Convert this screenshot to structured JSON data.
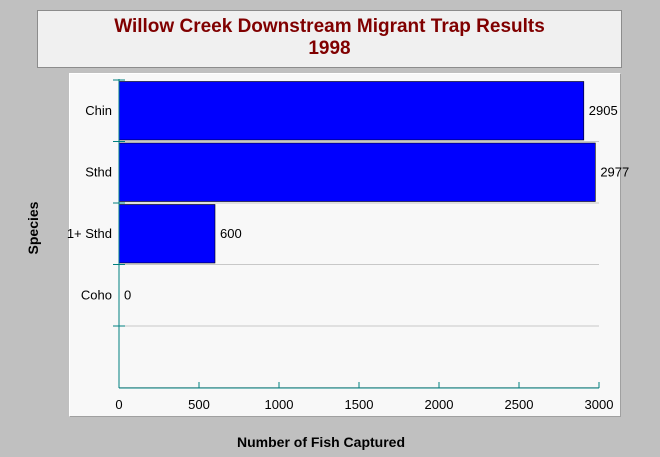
{
  "chart_data": {
    "type": "bar",
    "orientation": "horizontal",
    "title": [
      "Willow Creek Downstream Migrant Trap Results",
      "1998"
    ],
    "xlabel": "Number of Fish Captured",
    "ylabel": "Species",
    "categories": [
      "Chin",
      "Sthd",
      "1+ Sthd",
      "Coho"
    ],
    "values": [
      2905,
      2977,
      600,
      0
    ],
    "xlim": [
      0,
      3000
    ],
    "xticks": [
      "0",
      "500",
      "1000",
      "1500",
      "2000",
      "2500",
      "3000"
    ],
    "grid": "horizontal",
    "bar_color": "#0000ff",
    "title_color": "#800000"
  }
}
